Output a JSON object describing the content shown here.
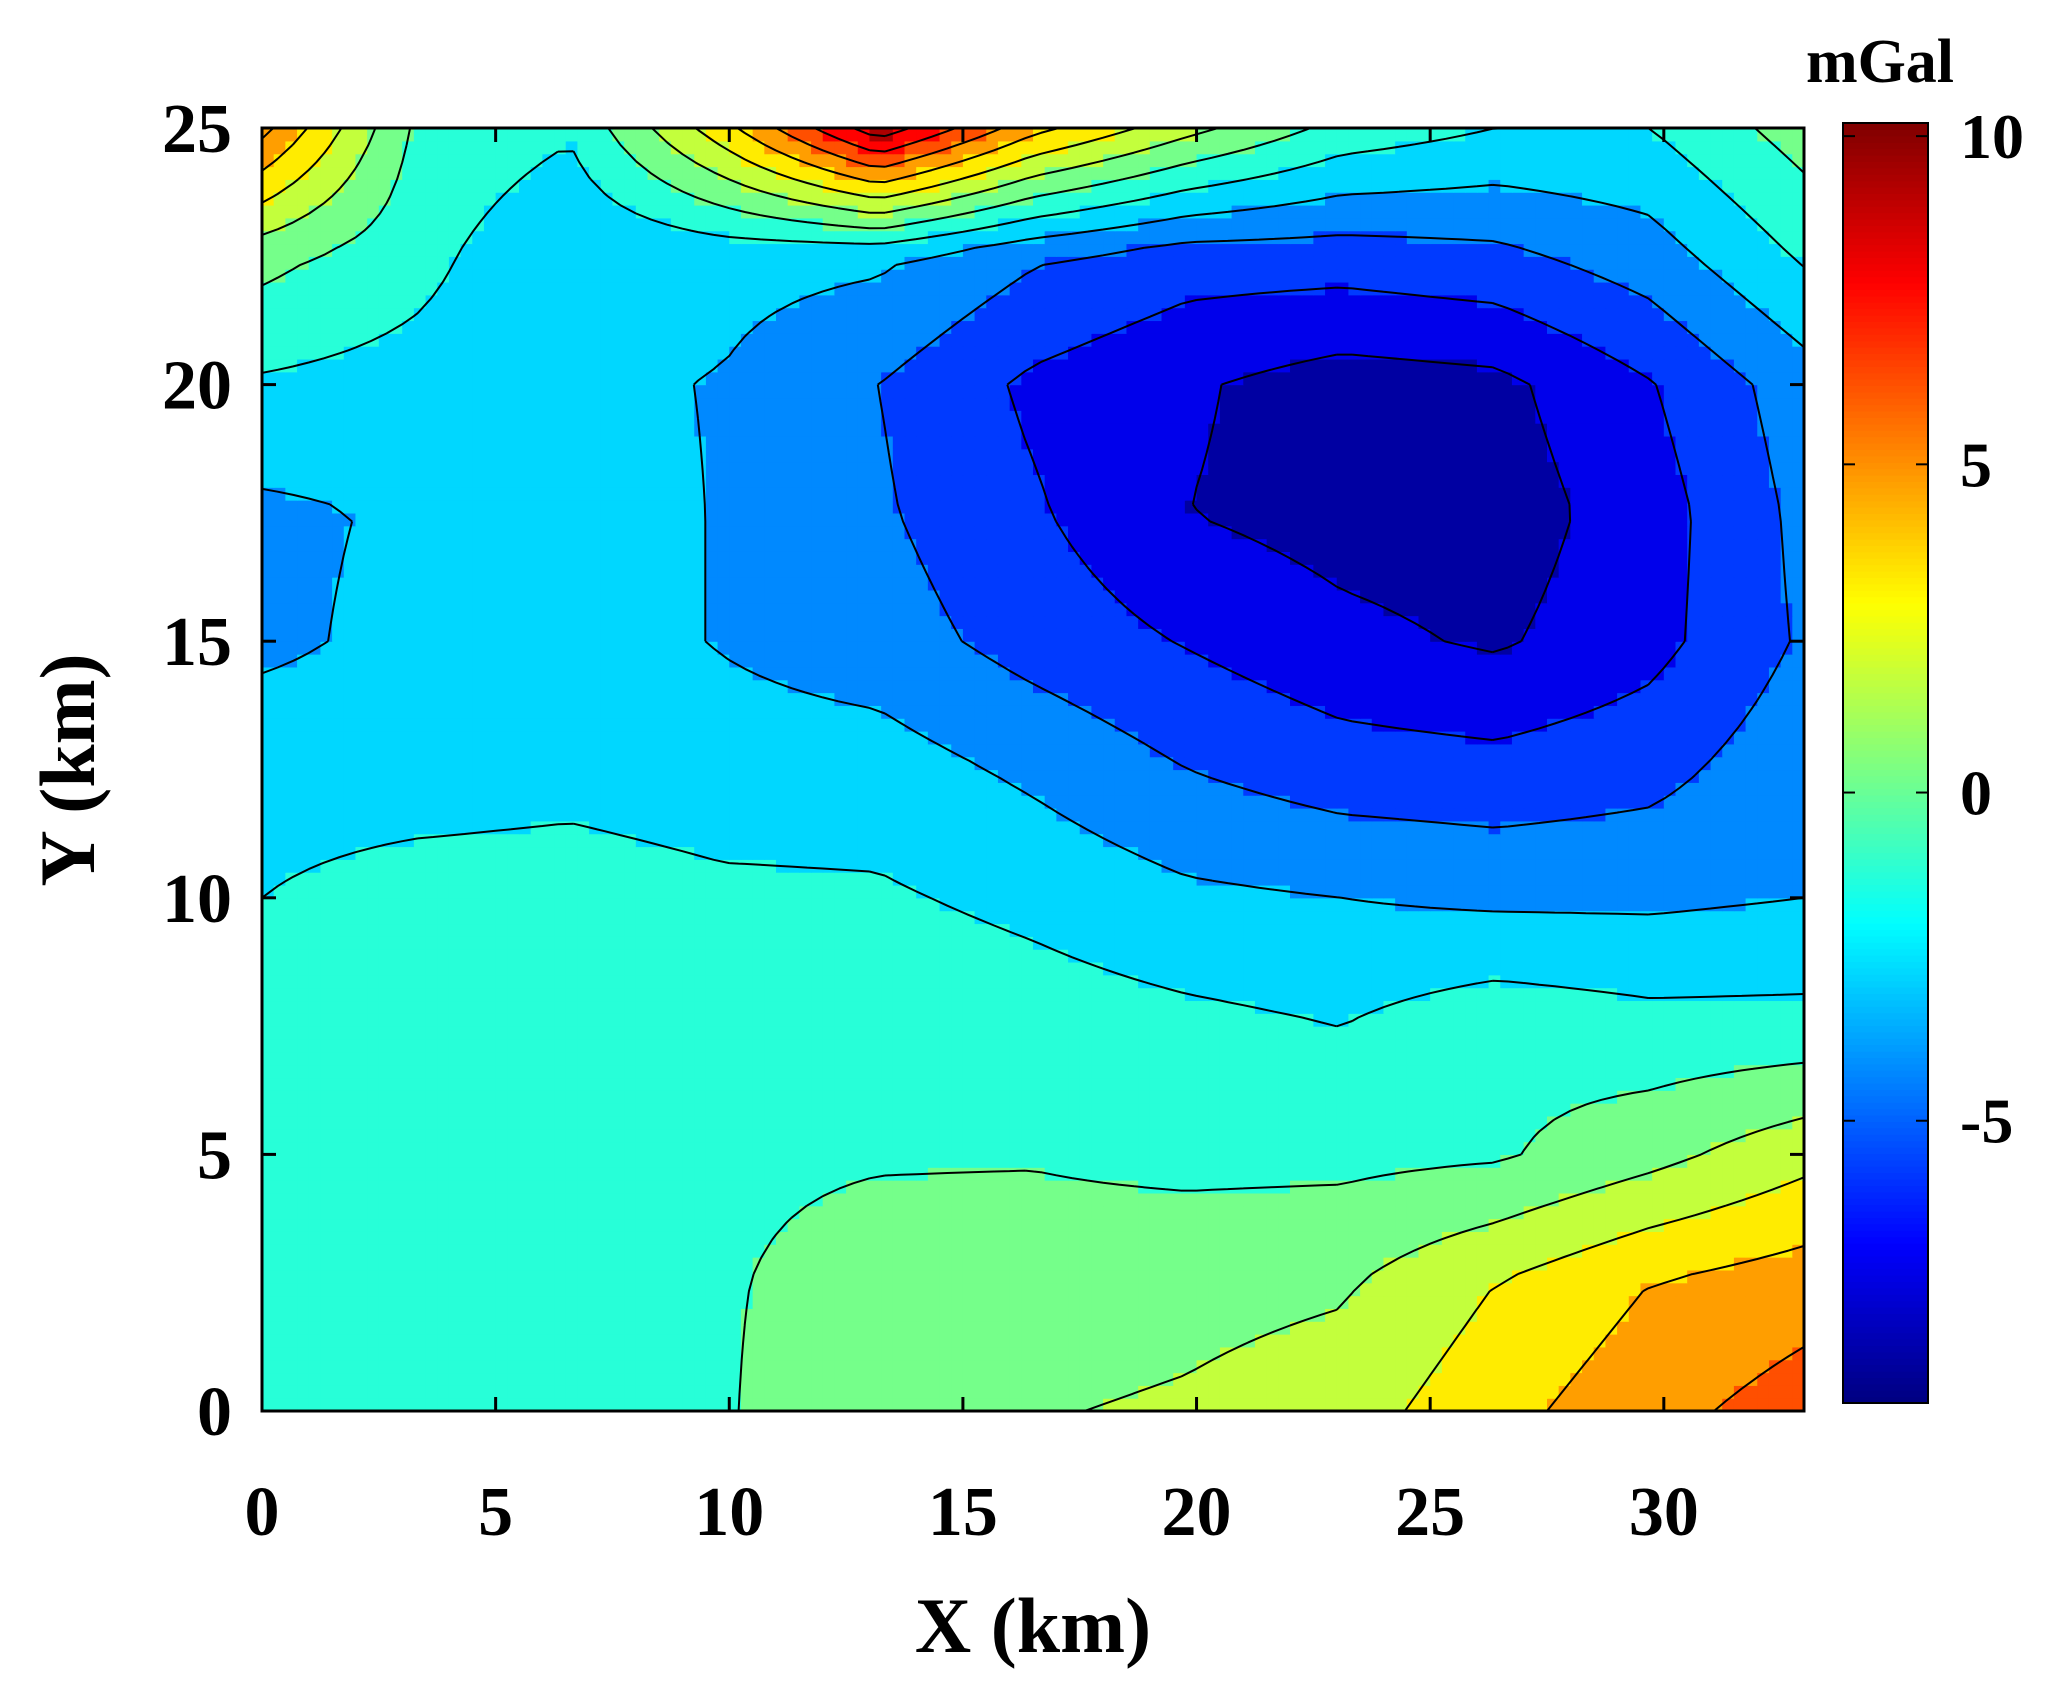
{
  "chart_data": {
    "type": "heatmap",
    "subtype": "filled-contour",
    "title": "",
    "xlabel": "X (km)",
    "ylabel": "Y (km)",
    "xlim": [
      0,
      33
    ],
    "ylim": [
      0,
      25
    ],
    "xticks": [
      0,
      5,
      10,
      15,
      20,
      25,
      30
    ],
    "yticks": [
      0,
      5,
      10,
      15,
      20,
      25
    ],
    "grid": false,
    "colormap": "jet",
    "colorbar": {
      "label": "mGal",
      "limits": [
        -9.3,
        10.2
      ],
      "ticks": [
        -5,
        0,
        5,
        10
      ],
      "tick_labels": [
        "-5",
        "0",
        "5",
        "10"
      ],
      "placement": "right"
    },
    "contour_levels": [
      -8,
      -6.5,
      -5,
      -3.5,
      -2,
      -0.5,
      1,
      2.5,
      4,
      5.5,
      7,
      8.5
    ],
    "grid_data": {
      "x": [
        0,
        3.3,
        6.6,
        9.9,
        13.2,
        16.5,
        19.8,
        23.1,
        26.4,
        29.7,
        33
      ],
      "y": [
        0,
        2.5,
        5,
        7.5,
        10,
        12.5,
        15,
        17.5,
        20,
        22.5,
        25
      ],
      "values": [
        [
          -2.0,
          -0.6,
          -0.7,
          -0.6,
          0.5,
          0.9,
          1.2,
          1.8,
          3.5,
          5.0,
          6.2
        ],
        [
          -2.0,
          -0.7,
          -0.8,
          -0.6,
          0.0,
          0.2,
          0.5,
          0.8,
          2.5,
          4.0,
          4.8
        ],
        [
          -1.8,
          -0.8,
          -0.9,
          -0.7,
          -0.6,
          -0.6,
          -0.9,
          -0.9,
          -0.7,
          0.5,
          2.0
        ],
        [
          -1.6,
          -0.8,
          -1.0,
          -0.8,
          -0.8,
          -1.2,
          -1.6,
          -2.0,
          -1.0,
          -1.5,
          -1.5
        ],
        [
          -2.0,
          -1.4,
          -1.3,
          -1.7,
          -1.8,
          -2.4,
          -3.2,
          -3.5,
          -3.8,
          -3.8,
          -3.5
        ],
        [
          -2.6,
          -2.7,
          -2.5,
          -2.8,
          -2.8,
          -3.8,
          -5.0,
          -5.8,
          -6.0,
          -5.5,
          -4.0
        ],
        [
          -3.8,
          -3.1,
          -2.8,
          -3.6,
          -4.3,
          -5.6,
          -6.6,
          -7.6,
          -8.2,
          -7.0,
          -4.8
        ],
        [
          -3.8,
          -3.3,
          -2.8,
          -3.6,
          -4.8,
          -6.3,
          -8.0,
          -8.6,
          -8.8,
          -7.2,
          -4.6
        ],
        [
          -2.2,
          -2.6,
          -3.1,
          -3.6,
          -5.0,
          -6.8,
          -7.8,
          -8.7,
          -8.4,
          -6.6,
          -4.2
        ],
        [
          0.0,
          -1.5,
          -3.4,
          -3.0,
          -3.2,
          -4.8,
          -5.8,
          -5.8,
          -5.4,
          -4.2,
          -1.8
        ],
        [
          6.0,
          -0.8,
          -1.8,
          3.5,
          9.5,
          4.5,
          1.5,
          -1.0,
          -2.0,
          -2.0,
          0.2
        ]
      ]
    }
  }
}
